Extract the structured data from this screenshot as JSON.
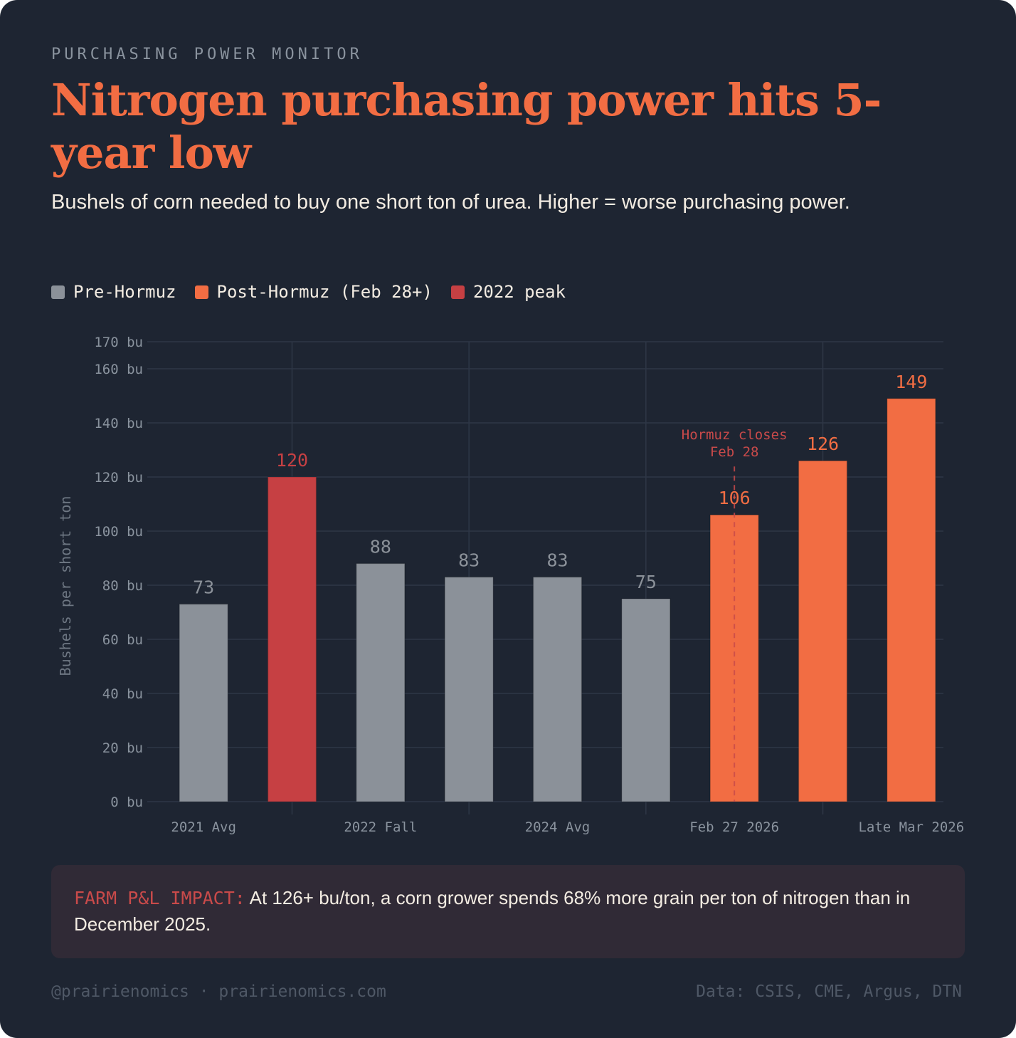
{
  "header": {
    "eyebrow": "PURCHASING POWER MONITOR",
    "title": "Nitrogen purchasing power hits 5-year low",
    "subtitle": "Bushels of corn needed to buy one short ton of urea. Higher = worse purchasing power."
  },
  "legend": [
    {
      "label": "Pre-Hormuz",
      "color": "#8b9199"
    },
    {
      "label": "Post-Hormuz (Feb 28+)",
      "color": "#f26d43"
    },
    {
      "label": "2022 peak",
      "color": "#c64043"
    }
  ],
  "chart_data": {
    "type": "bar",
    "title": "Nitrogen purchasing power hits 5-year low",
    "subtitle": "Bushels of corn needed to buy one short ton of urea. Higher = worse purchasing power.",
    "xlabel": "",
    "ylabel": "Bushels per short ton",
    "ylim": [
      0,
      170
    ],
    "yticks": [
      0,
      20,
      40,
      60,
      80,
      100,
      120,
      140,
      160,
      170
    ],
    "ytick_suffix": " bu",
    "grid": true,
    "legend_position": "top-left",
    "categories": [
      "2021 Avg",
      "",
      "2022 Fall",
      "",
      "2024 Avg",
      "",
      "Feb 27 2026",
      "",
      "Late Mar 2026"
    ],
    "values": [
      73,
      120,
      88,
      83,
      83,
      75,
      106,
      126,
      149
    ],
    "groups": [
      "Pre-Hormuz",
      "2022 peak",
      "Pre-Hormuz",
      "Pre-Hormuz",
      "Pre-Hormuz",
      "Pre-Hormuz",
      "Post-Hormuz (Feb 28+)",
      "Post-Hormuz (Feb 28+)",
      "Post-Hormuz (Feb 28+)"
    ],
    "colors": [
      "#8b9199",
      "#c64043",
      "#8b9199",
      "#8b9199",
      "#8b9199",
      "#8b9199",
      "#f26d43",
      "#f26d43",
      "#f26d43"
    ],
    "label_colors": [
      "#8b9199",
      "#c64043",
      "#8b9199",
      "#8b9199",
      "#8b9199",
      "#8b9199",
      "#f26d43",
      "#f26d43",
      "#f26d43"
    ],
    "annotations": [
      {
        "text_lines": [
          "Hormuz closes",
          "Feb 28"
        ],
        "at_category_index": 6,
        "style": "dashed-vertical-line",
        "color": "#c94a4a"
      }
    ]
  },
  "impact": {
    "label": "FARM P&L IMPACT:",
    "text": " At 126+ bu/ton, a corn grower spends 68% more grain per ton of nitrogen than in December 2025."
  },
  "footer": {
    "left": "@prairienomics · prairienomics.com",
    "right": "Data: CSIS, CME, Argus, DTN"
  },
  "colors": {
    "background": "#1e2532",
    "accent": "#f26d43",
    "peak": "#c64043",
    "neutral": "#8b9199",
    "impact_bg": "#302a36"
  }
}
